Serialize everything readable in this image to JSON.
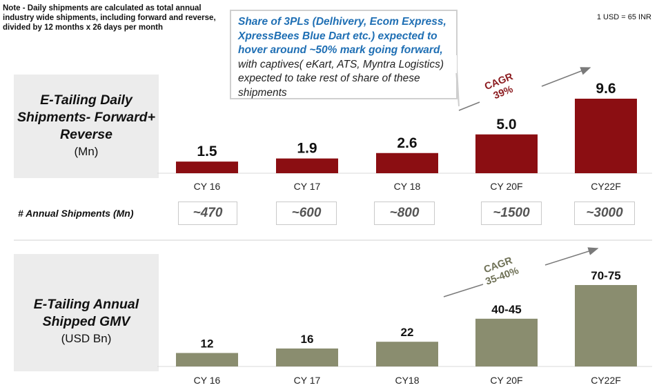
{
  "note": "Note - Daily shipments are calculated as total annual industry  wide shipments,  including forward and reverse, divided by 12 months  x 26 days per month",
  "fx_note": "1 USD = 65 INR",
  "callout": {
    "highlight": "Share of 3PLs (Delhivery,  Ecom Express,  XpressBees  Blue Dart etc.) expected  to hover around  ~50% mark going forward,",
    "rest": " with captives( eKart, ATS, Myntra Logistics) expected to take rest of share of these shipments"
  },
  "top_panel": {
    "title": "E-Tailing Daily Shipments- Forward+ Reverse",
    "unit": "(Mn)",
    "cagr_label": "CAGR",
    "cagr_value": "39%",
    "annual_label": "# Annual Shipments  (Mn)",
    "annual_values": [
      "~470",
      "~600",
      "~800",
      "~1500",
      "~3000"
    ]
  },
  "bottom_panel": {
    "title": "E-Tailing Annual Shipped GMV",
    "unit": "(USD Bn)",
    "cagr_label": "CAGR",
    "cagr_value": "35-40%"
  },
  "colors": {
    "top_bar": "#8b0e12",
    "bottom_bar": "#8a8d6f",
    "cagr_top": "#8b1a1e",
    "cagr_bottom": "#6e7055",
    "callout_text": "#1f6fb4"
  },
  "chart_data": [
    {
      "type": "bar",
      "title": "E-Tailing Daily Shipments- Forward+ Reverse (Mn)",
      "categories": [
        "CY 16",
        "CY 17",
        "CY 18",
        "CY 20F",
        "CY22F"
      ],
      "values": [
        1.5,
        1.9,
        2.6,
        5.0,
        9.6
      ],
      "value_labels": [
        "1.5",
        "1.9",
        "2.6",
        "5.0",
        "9.6"
      ],
      "ylim": [
        0,
        9.6
      ]
    },
    {
      "type": "bar",
      "title": "E-Tailing Annual Shipped GMV (USD Bn)",
      "categories": [
        "CY 16",
        "CY 17",
        "CY18",
        "CY 20F",
        "CY22F"
      ],
      "values": [
        12,
        16,
        22,
        42.5,
        72.5
      ],
      "value_labels": [
        "12",
        "16",
        "22",
        "40-45",
        "70-75"
      ],
      "ylim": [
        0,
        72.5
      ]
    }
  ]
}
